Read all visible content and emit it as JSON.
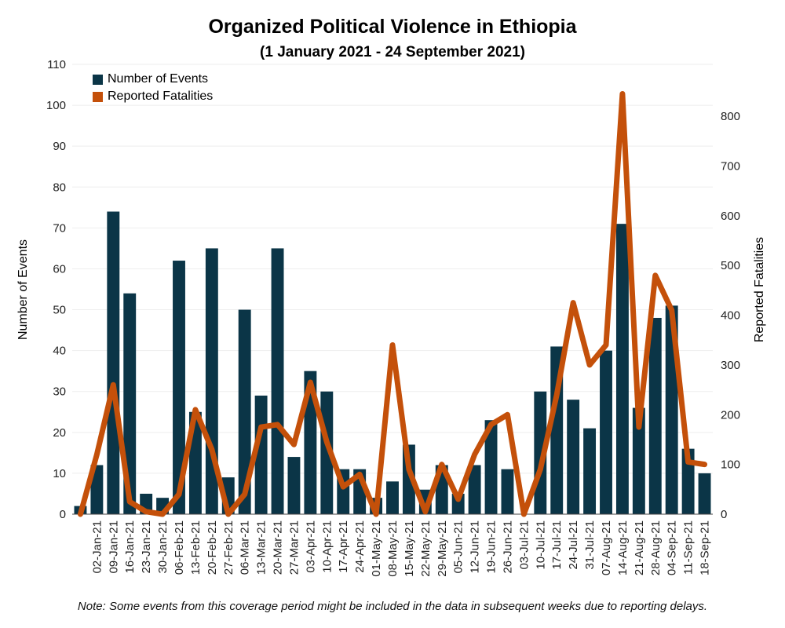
{
  "colors": {
    "events": "#0b3547",
    "fatalities": "#c4500a",
    "grid": "#eeeeee",
    "axis": "#333333"
  },
  "chart_data": {
    "type": "bar+line",
    "title": "Organized Political Violence in Ethiopia",
    "subtitle": "(1 January 2021 - 24 September 2021)",
    "note": "Note: Some events from this coverage period might be included in the data in subsequent weeks due to reporting delays.",
    "ylabel_left": "Number of Events",
    "ylabel_right": "Reported Fatalities",
    "ylim_left": [
      0,
      110
    ],
    "yticks_left": [
      0,
      10,
      20,
      30,
      40,
      50,
      60,
      70,
      80,
      90,
      100,
      110
    ],
    "ylim_right": [
      0,
      850
    ],
    "yticks_right": [
      0,
      100,
      200,
      300,
      400,
      500,
      600,
      700,
      800
    ],
    "legend_position": "top-left",
    "grid": true,
    "categories": [
      "",
      "02-Jan-21",
      "09-Jan-21",
      "16-Jan-21",
      "23-Jan-21",
      "30-Jan-21",
      "06-Feb-21",
      "13-Feb-21",
      "20-Feb-21",
      "27-Feb-21",
      "06-Mar-21",
      "13-Mar-21",
      "20-Mar-21",
      "27-Mar-21",
      "03-Apr-21",
      "10-Apr-21",
      "17-Apr-21",
      "24-Apr-21",
      "01-May-21",
      "08-May-21",
      "15-May-21",
      "22-May-21",
      "29-May-21",
      "05-Jun-21",
      "12-Jun-21",
      "19-Jun-21",
      "26-Jun-21",
      "03-Jul-21",
      "10-Jul-21",
      "17-Jul-21",
      "24-Jul-21",
      "31-Jul-21",
      "07-Aug-21",
      "14-Aug-21",
      "21-Aug-21",
      "28-Aug-21",
      "04-Sep-21",
      "11-Sep-21",
      "18-Sep-21"
    ],
    "series": [
      {
        "name": "Number of Events",
        "type": "bar",
        "axis": "left",
        "values": [
          2,
          12,
          74,
          54,
          5,
          4,
          62,
          25,
          65,
          9,
          50,
          29,
          65,
          14,
          35,
          30,
          11,
          11,
          4,
          8,
          17,
          6,
          12,
          5,
          12,
          23,
          11,
          0,
          30,
          41,
          28,
          21,
          40,
          71,
          26,
          48,
          51,
          16,
          10
        ]
      },
      {
        "name": "Reported Fatalities",
        "type": "line",
        "axis": "right",
        "values": [
          0,
          120,
          260,
          25,
          5,
          0,
          40,
          210,
          130,
          0,
          40,
          175,
          180,
          140,
          265,
          145,
          55,
          80,
          0,
          340,
          90,
          5,
          100,
          30,
          120,
          180,
          200,
          0,
          90,
          240,
          425,
          300,
          340,
          845,
          175,
          480,
          410,
          105,
          100
        ]
      }
    ]
  }
}
